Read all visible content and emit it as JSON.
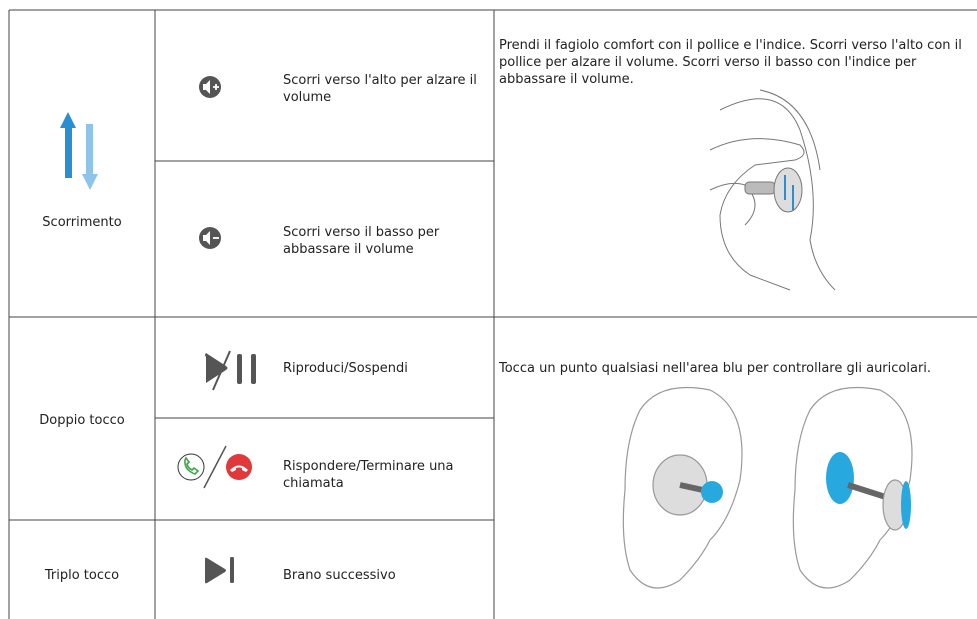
{
  "table": {
    "groups": [
      {
        "gesture": "Scorrimento",
        "actions": [
          "Scorri verso l'alto per alzare il volume",
          "Scorri verso il basso per abbassare il volume"
        ],
        "description": "Prendi il fagiolo comfort con il pollice e l'indice. Scorri verso l'alto con il pollice per alzare il volume. Scorri verso il basso con l'indice per abbassare il volume."
      },
      {
        "gesture": "Doppio tocco",
        "actions": [
          "Riproduci/Sospendi",
          "Rispondere/Terminare una chiamata"
        ],
        "description": "Tocca un punto qualsiasi nell'area blu per controllare gli auricolari."
      },
      {
        "gesture": "Triplo tocco",
        "actions": [
          "Brano successivo"
        ]
      }
    ]
  }
}
